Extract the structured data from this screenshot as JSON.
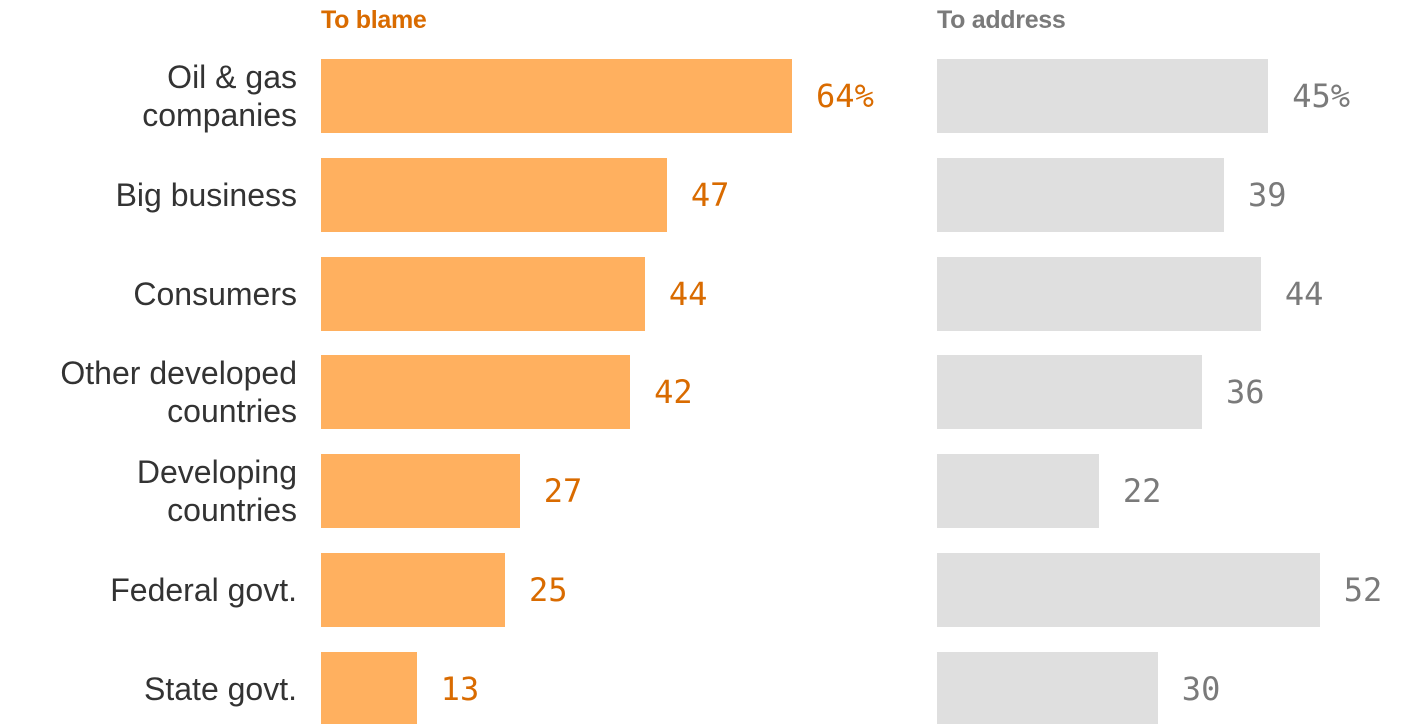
{
  "chart_data": {
    "type": "bar",
    "orientation": "horizontal",
    "categories": [
      "Oil & gas\ncompanies",
      "Big business",
      "Consumers",
      "Other developed\ncountries",
      "Developing\ncountries",
      "Federal govt.",
      "State govt."
    ],
    "series": [
      {
        "name": "To blame",
        "values": [
          64,
          47,
          44,
          42,
          27,
          25,
          13
        ],
        "labels": [
          "64%",
          "47",
          "44",
          "42",
          "27",
          "25",
          "13"
        ],
        "bar_color": "#ffb05f",
        "text_color": "#d96b00"
      },
      {
        "name": "To address",
        "values": [
          45,
          39,
          44,
          36,
          22,
          52,
          30
        ],
        "labels": [
          "45%",
          "39",
          "44",
          "36",
          "22",
          "52",
          "30"
        ],
        "bar_color": "#dfdfdf",
        "text_color": "#7a7a7a"
      }
    ],
    "value_unit": "%",
    "grid": false,
    "legend": "panel titles above each column"
  }
}
